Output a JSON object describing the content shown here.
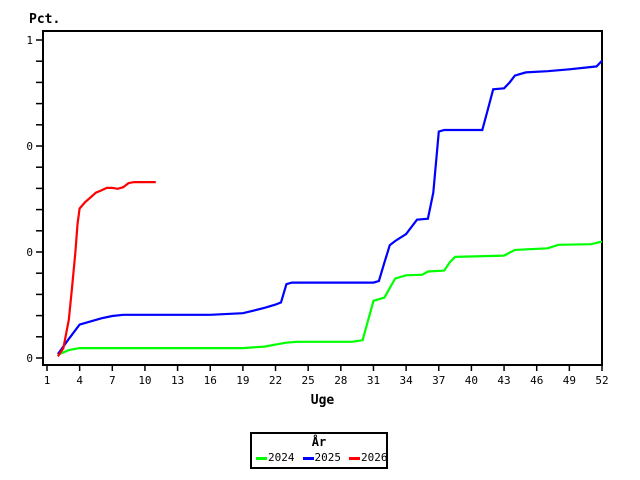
{
  "chart_data": {
    "type": "line",
    "y_axis": {
      "title": "Pct.",
      "min": 0,
      "max": 1,
      "major_ticks": [
        {
          "frac": 0.0,
          "label": "0"
        },
        {
          "frac": 0.3333,
          "label": "0"
        },
        {
          "frac": 0.6667,
          "label": "0"
        },
        {
          "frac": 1.0,
          "label": "1"
        }
      ],
      "total_ticks": 16
    },
    "x_axis": {
      "title": "Uge",
      "min": 1,
      "max": 52,
      "tick_labels": [
        1,
        4,
        7,
        10,
        13,
        16,
        19,
        22,
        25,
        28,
        31,
        34,
        37,
        40,
        43,
        46,
        49,
        52
      ]
    },
    "legend": {
      "title": "År",
      "entries": [
        {
          "label": "2024",
          "color": "#00FF00"
        },
        {
          "label": "2025",
          "color": "#0000FF"
        },
        {
          "label": "2026",
          "color": "#FF0000"
        }
      ]
    },
    "series": [
      {
        "name": "2024",
        "color": "#00FF00",
        "points": [
          [
            2,
            0.01
          ],
          [
            3,
            0.025
          ],
          [
            4,
            0.031
          ],
          [
            19,
            0.031
          ],
          [
            21,
            0.036
          ],
          [
            22,
            0.042
          ],
          [
            23,
            0.048
          ],
          [
            24,
            0.051
          ],
          [
            29,
            0.051
          ],
          [
            30,
            0.056
          ],
          [
            31,
            0.18
          ],
          [
            32,
            0.19
          ],
          [
            33,
            0.25
          ],
          [
            34,
            0.26
          ],
          [
            35.5,
            0.262
          ],
          [
            36,
            0.272
          ],
          [
            37.5,
            0.275
          ],
          [
            38,
            0.3
          ],
          [
            38.5,
            0.318
          ],
          [
            43,
            0.322
          ],
          [
            44,
            0.34
          ],
          [
            47,
            0.345
          ],
          [
            48,
            0.356
          ],
          [
            51,
            0.358
          ],
          [
            52,
            0.366
          ]
        ]
      },
      {
        "name": "2025",
        "color": "#0000FF",
        "points": [
          [
            2,
            0.012
          ],
          [
            3,
            0.06
          ],
          [
            4,
            0.105
          ],
          [
            5,
            0.115
          ],
          [
            6,
            0.125
          ],
          [
            7,
            0.132
          ],
          [
            8,
            0.136
          ],
          [
            16,
            0.136
          ],
          [
            19,
            0.141
          ],
          [
            20,
            0.149
          ],
          [
            21,
            0.158
          ],
          [
            22,
            0.168
          ],
          [
            22.5,
            0.175
          ],
          [
            23,
            0.232
          ],
          [
            23.5,
            0.237
          ],
          [
            31,
            0.237
          ],
          [
            31.5,
            0.242
          ],
          [
            32,
            0.3
          ],
          [
            32.5,
            0.355
          ],
          [
            33,
            0.368
          ],
          [
            34,
            0.39
          ],
          [
            35,
            0.435
          ],
          [
            36,
            0.438
          ],
          [
            36.5,
            0.52
          ],
          [
            37,
            0.712
          ],
          [
            37.5,
            0.717
          ],
          [
            41,
            0.717
          ],
          [
            41.5,
            0.78
          ],
          [
            42,
            0.845
          ],
          [
            43,
            0.848
          ],
          [
            43.5,
            0.866
          ],
          [
            44,
            0.888
          ],
          [
            45,
            0.898
          ],
          [
            47,
            0.902
          ],
          [
            49,
            0.908
          ],
          [
            51,
            0.915
          ],
          [
            51.5,
            0.917
          ],
          [
            52,
            0.935
          ]
        ]
      },
      {
        "name": "2026",
        "color": "#FF0000",
        "points": [
          [
            2,
            0.005
          ],
          [
            2.5,
            0.03
          ],
          [
            3,
            0.12
          ],
          [
            3.3,
            0.22
          ],
          [
            3.6,
            0.33
          ],
          [
            3.8,
            0.42
          ],
          [
            4,
            0.47
          ],
          [
            4.5,
            0.49
          ],
          [
            5,
            0.505
          ],
          [
            5.5,
            0.52
          ],
          [
            6,
            0.527
          ],
          [
            6.5,
            0.535
          ],
          [
            7,
            0.535
          ],
          [
            7.5,
            0.532
          ],
          [
            8,
            0.537
          ],
          [
            8.5,
            0.55
          ],
          [
            9,
            0.553
          ],
          [
            11,
            0.553
          ]
        ]
      }
    ]
  }
}
